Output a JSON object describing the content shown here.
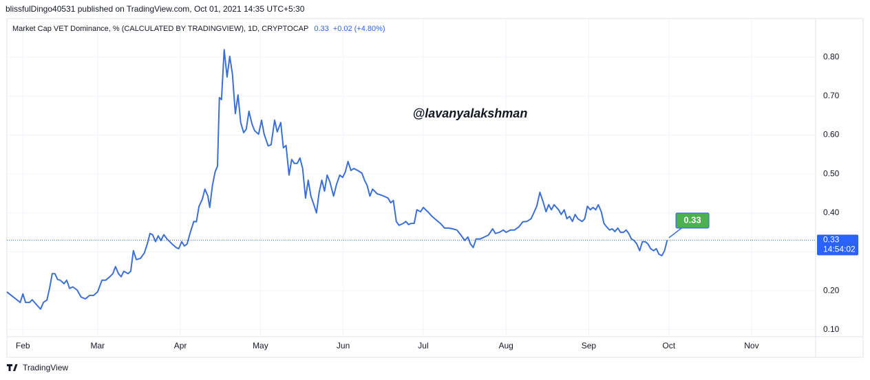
{
  "header": {
    "publisher": "blissfulDingo40531 published on TradingView.com, Oct 01, 2021 14:35 UTC+5:30",
    "brand": "TradingView"
  },
  "chart_data": {
    "type": "line",
    "title": "Market Cap VET Dominance, % (CALCULATED BY TRADINGVIEW), 1D, CRYPTOCAP",
    "legend_values": [
      "0.33",
      "+0.02 (+4.80%)"
    ],
    "annotation": "@lavanyalakshman",
    "callout": "0.33",
    "last_price": {
      "value": 0.33,
      "label": "0.33",
      "time": "14:54:02"
    },
    "color": "#3a6fd8",
    "grid": true,
    "xlim": [
      0,
      303
    ],
    "ylim": [
      0.082,
      0.899
    ],
    "xticks": [
      {
        "value": 6,
        "label": "Feb"
      },
      {
        "value": 34,
        "label": "Mar"
      },
      {
        "value": 65,
        "label": "Apr"
      },
      {
        "value": 95,
        "label": "May"
      },
      {
        "value": 126,
        "label": "Jun"
      },
      {
        "value": 156,
        "label": "Jul"
      },
      {
        "value": 187,
        "label": "Aug"
      },
      {
        "value": 218,
        "label": "Sep"
      },
      {
        "value": 248,
        "label": "Oct"
      },
      {
        "value": 279,
        "label": "Nov"
      }
    ],
    "yticks": [
      {
        "value": 0.1,
        "label": "0.10"
      },
      {
        "value": 0.2,
        "label": "0.20"
      },
      {
        "value": 0.3,
        "label": "0.30"
      },
      {
        "value": 0.4,
        "label": "0.40"
      },
      {
        "value": 0.5,
        "label": "0.50"
      },
      {
        "value": 0.6,
        "label": "0.60"
      },
      {
        "value": 0.7,
        "label": "0.70"
      },
      {
        "value": 0.8,
        "label": "0.80"
      }
    ],
    "x": [
      0,
      2.6,
      5,
      6,
      7,
      8.5,
      9.5,
      11,
      12.6,
      13.7,
      15,
      16,
      17,
      18,
      19,
      20,
      21.4,
      22.4,
      23.5,
      24.7,
      26.3,
      27.8,
      29.4,
      31,
      32.5,
      34,
      35.6,
      37,
      38.7,
      39.7,
      40.7,
      41.8,
      42.8,
      43.8,
      45.4,
      46.4,
      47.4,
      48.5,
      50,
      51.5,
      52.6,
      53.6,
      54.6,
      55.7,
      56.7,
      57.7,
      58.8,
      60,
      61.9,
      63.4,
      64.4,
      65.5,
      66.5,
      67.5,
      68.6,
      70,
      71,
      72,
      73.2,
      74.2,
      75.3,
      76,
      77,
      78,
      78.9,
      79.6,
      80.4,
      81.4,
      82.5,
      83.5,
      84.5,
      85.6,
      86.6,
      87.6,
      88.7,
      89.7,
      90.7,
      91.8,
      92.8,
      94.3,
      95.4,
      96.4,
      97.9,
      99,
      100.3,
      101.3,
      102.6,
      103.6,
      104.6,
      105.7,
      106.7,
      107.7,
      108.8,
      109.8,
      110.8,
      111.9,
      112.9,
      113.9,
      115,
      116,
      117,
      118,
      119,
      120,
      121,
      122.4,
      123.5,
      124.7,
      125.8,
      126.8,
      127.8,
      128.9,
      130,
      131.4,
      133,
      134,
      135,
      136,
      137,
      138.7,
      139.7,
      141.2,
      142.8,
      143.8,
      144.8,
      145.9,
      146.9,
      148.5,
      149.5,
      150.5,
      151.5,
      152.6,
      153.6,
      155,
      156,
      157.7,
      159.3,
      160.8,
      162.4,
      164,
      165.5,
      167,
      168.6,
      170.1,
      171.6,
      172.7,
      173.7,
      174.7,
      175.8,
      177.3,
      178.9,
      180.4,
      182,
      183,
      184.5,
      186,
      187,
      188.7,
      190.2,
      191.8,
      193.3,
      194.8,
      196.4,
      197.4,
      198.5,
      199.7,
      201,
      202,
      203,
      204,
      205,
      206.7,
      207.7,
      208.8,
      209.8,
      210.8,
      211.9,
      212.9,
      213.9,
      215.5,
      216.5,
      217.5,
      218.6,
      219.6,
      220.6,
      221.6,
      222.7,
      223.7,
      224.7,
      225.8,
      226.8,
      227.8,
      228.9,
      229.9,
      231,
      232,
      233,
      234,
      235,
      236,
      237.1,
      238.1,
      239.2,
      240.2,
      241.2,
      242.3,
      243.3,
      244.3,
      245.4,
      246.4,
      247.4
    ],
    "values": [
      0.197,
      0.183,
      0.17,
      0.192,
      0.17,
      0.17,
      0.177,
      0.165,
      0.153,
      0.17,
      0.176,
      0.206,
      0.244,
      0.244,
      0.229,
      0.227,
      0.218,
      0.227,
      0.206,
      0.21,
      0.202,
      0.184,
      0.179,
      0.188,
      0.188,
      0.197,
      0.227,
      0.227,
      0.237,
      0.244,
      0.262,
      0.244,
      0.236,
      0.25,
      0.244,
      0.25,
      0.303,
      0.28,
      0.283,
      0.297,
      0.32,
      0.347,
      0.344,
      0.326,
      0.341,
      0.329,
      0.344,
      0.333,
      0.32,
      0.311,
      0.308,
      0.326,
      0.315,
      0.32,
      0.347,
      0.378,
      0.377,
      0.417,
      0.435,
      0.461,
      0.443,
      0.414,
      0.47,
      0.505,
      0.52,
      0.696,
      0.691,
      0.819,
      0.749,
      0.802,
      0.756,
      0.655,
      0.703,
      0.632,
      0.606,
      0.615,
      0.661,
      0.629,
      0.611,
      0.602,
      0.638,
      0.602,
      0.572,
      0.575,
      0.638,
      0.608,
      0.632,
      0.567,
      0.573,
      0.497,
      0.537,
      0.527,
      0.527,
      0.541,
      0.514,
      0.438,
      0.484,
      0.443,
      0.421,
      0.4,
      0.453,
      0.484,
      0.456,
      0.497,
      0.48,
      0.443,
      0.473,
      0.497,
      0.491,
      0.505,
      0.532,
      0.509,
      0.514,
      0.509,
      0.502,
      0.484,
      0.47,
      0.443,
      0.461,
      0.449,
      0.447,
      0.443,
      0.438,
      0.426,
      0.432,
      0.378,
      0.368,
      0.373,
      0.378,
      0.37,
      0.373,
      0.373,
      0.408,
      0.403,
      0.414,
      0.403,
      0.391,
      0.382,
      0.373,
      0.361,
      0.361,
      0.359,
      0.356,
      0.343,
      0.329,
      0.338,
      0.32,
      0.311,
      0.333,
      0.333,
      0.338,
      0.343,
      0.359,
      0.347,
      0.35,
      0.356,
      0.35,
      0.356,
      0.356,
      0.364,
      0.377,
      0.378,
      0.385,
      0.4,
      0.417,
      0.453,
      0.426,
      0.403,
      0.421,
      0.408,
      0.421,
      0.408,
      0.396,
      0.408,
      0.385,
      0.391,
      0.378,
      0.396,
      0.385,
      0.378,
      0.385,
      0.417,
      0.408,
      0.414,
      0.408,
      0.421,
      0.403,
      0.373,
      0.364,
      0.356,
      0.359,
      0.352,
      0.361,
      0.35,
      0.35,
      0.356,
      0.347,
      0.333,
      0.329,
      0.32,
      0.303,
      0.326,
      0.326,
      0.32,
      0.308,
      0.303,
      0.308,
      0.294,
      0.29,
      0.303,
      0.33
    ]
  }
}
